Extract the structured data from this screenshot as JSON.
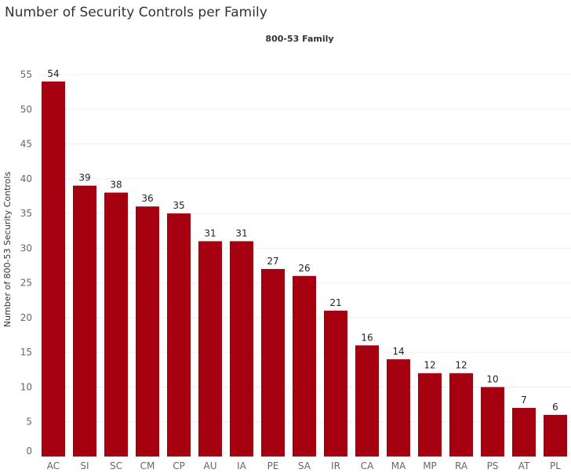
{
  "chart_data": {
    "type": "bar",
    "title": "Number of Security Controls per Family",
    "column_header": "800-53 Family",
    "xlabel": "",
    "ylabel": "Number of 800-53 Security Controls",
    "categories": [
      "AC",
      "SI",
      "SC",
      "CM",
      "CP",
      "AU",
      "IA",
      "PE",
      "SA",
      "IR",
      "CA",
      "MA",
      "MP",
      "RA",
      "PS",
      "AT",
      "PL"
    ],
    "values": [
      54,
      39,
      38,
      36,
      35,
      31,
      31,
      27,
      26,
      21,
      16,
      14,
      12,
      12,
      10,
      7,
      6
    ],
    "yticks": [
      0,
      5,
      10,
      15,
      20,
      25,
      30,
      35,
      40,
      45,
      50,
      55
    ],
    "ylim": [
      0,
      58
    ],
    "grid": true,
    "data_labels": true,
    "bar_color": "#A50010",
    "grid_color": "#EFEFEF",
    "legend": "none"
  }
}
